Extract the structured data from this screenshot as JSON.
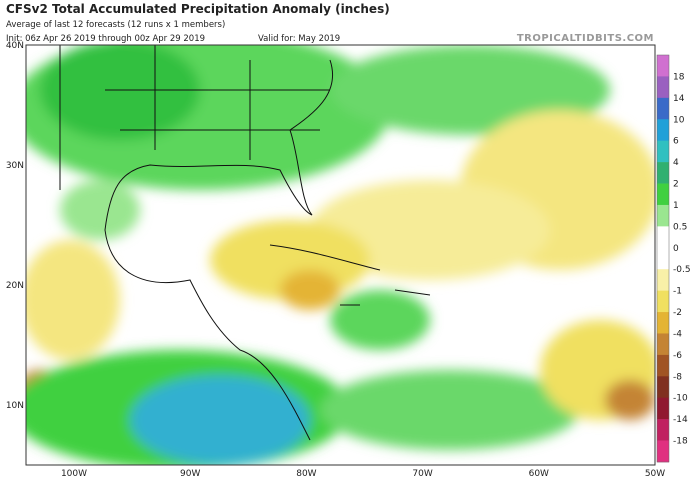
{
  "header": {
    "title": "CFSv2 Total Accumulated Precipitation Anomaly (inches)",
    "subtitle": "Average of last 12 forecasts (12 runs x 1 members)",
    "init": "Init: 06z Apr 26 2019 through 00z Apr 29 2019",
    "valid": "Valid for: May 2019",
    "source": "TROPICALTIDBITS.COM"
  },
  "map": {
    "lat_labels": [
      "40N",
      "30N",
      "20N",
      "10N"
    ],
    "lon_labels": [
      "100W",
      "90W",
      "80W",
      "70W",
      "60W",
      "50W"
    ]
  },
  "colorbar": {
    "labels": [
      "18",
      "14",
      "10",
      "6",
      "4",
      "2",
      "1",
      "0.5",
      "0",
      "-0.5",
      "-1",
      "-2",
      "-4",
      "-6",
      "-8",
      "-10",
      "-14",
      "-18"
    ],
    "colors": [
      "#d070d0",
      "#9a60c0",
      "#3a6ac8",
      "#20a0d8",
      "#30c0c0",
      "#30b070",
      "#40d040",
      "#9ae690",
      "#ffffff",
      "#ffffff",
      "#f8f0a8",
      "#f0e060",
      "#e4b434",
      "#c48434",
      "#a05424",
      "#803020",
      "#901830",
      "#c02060",
      "#e03080"
    ]
  }
}
